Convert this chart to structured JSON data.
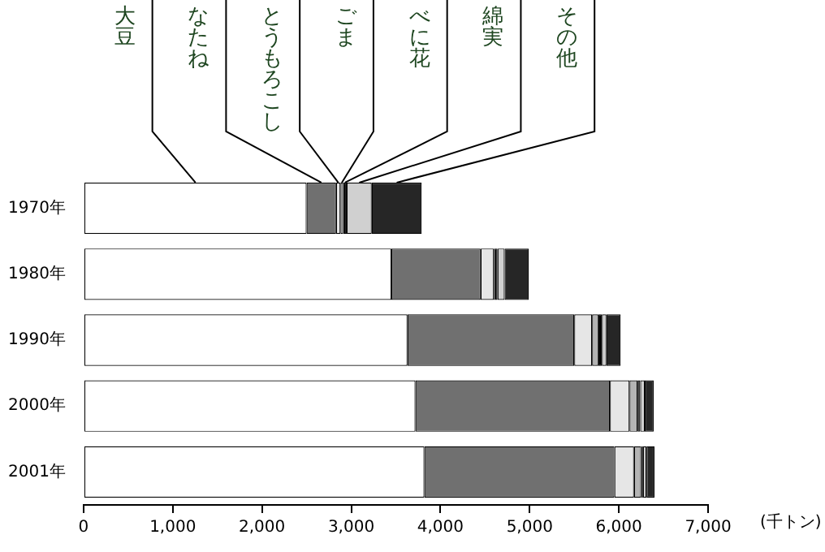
{
  "chart_data": {
    "type": "bar",
    "orientation": "horizontal",
    "stacked": true,
    "categories": [
      "1970年",
      "1980年",
      "1990年",
      "2000年",
      "2001年"
    ],
    "series": [
      {
        "name": "大豆",
        "color": "#ffffff",
        "values": [
          2500,
          3450,
          3630,
          3720,
          3820
        ]
      },
      {
        "name": "なたね",
        "color": "#707070",
        "values": [
          330,
          1000,
          1870,
          2180,
          2130
        ]
      },
      {
        "name": "とうもろこし",
        "color": "#e6e6e6",
        "values": [
          50,
          150,
          200,
          220,
          220
        ]
      },
      {
        "name": "ごま",
        "color": "#b4b4b4",
        "values": [
          30,
          null,
          70,
          90,
          80
        ]
      },
      {
        "name": "べに花",
        "color": "#000000",
        "values": [
          40,
          40,
          40,
          30,
          20
        ]
      },
      {
        "name": "綿実",
        "color": "#d0d0d0",
        "values": [
          280,
          80,
          50,
          50,
          40
        ]
      },
      {
        "name": "その他",
        "color": "#262626",
        "values": [
          560,
          270,
          160,
          100,
          90
        ]
      }
    ],
    "xlim": [
      0,
      7000
    ],
    "xticks": [
      {
        "value": 0,
        "label": "0"
      },
      {
        "value": 1000,
        "label": "1,000"
      },
      {
        "value": 2000,
        "label": "2,000"
      },
      {
        "value": 3000,
        "label": "3,000"
      },
      {
        "value": 4000,
        "label": "4,000"
      },
      {
        "value": 5000,
        "label": "5,000"
      },
      {
        "value": 6000,
        "label": "6,000"
      },
      {
        "value": 7000,
        "label": "7,000"
      }
    ],
    "grid": false,
    "annotations": [
      "(千トン)"
    ]
  }
}
